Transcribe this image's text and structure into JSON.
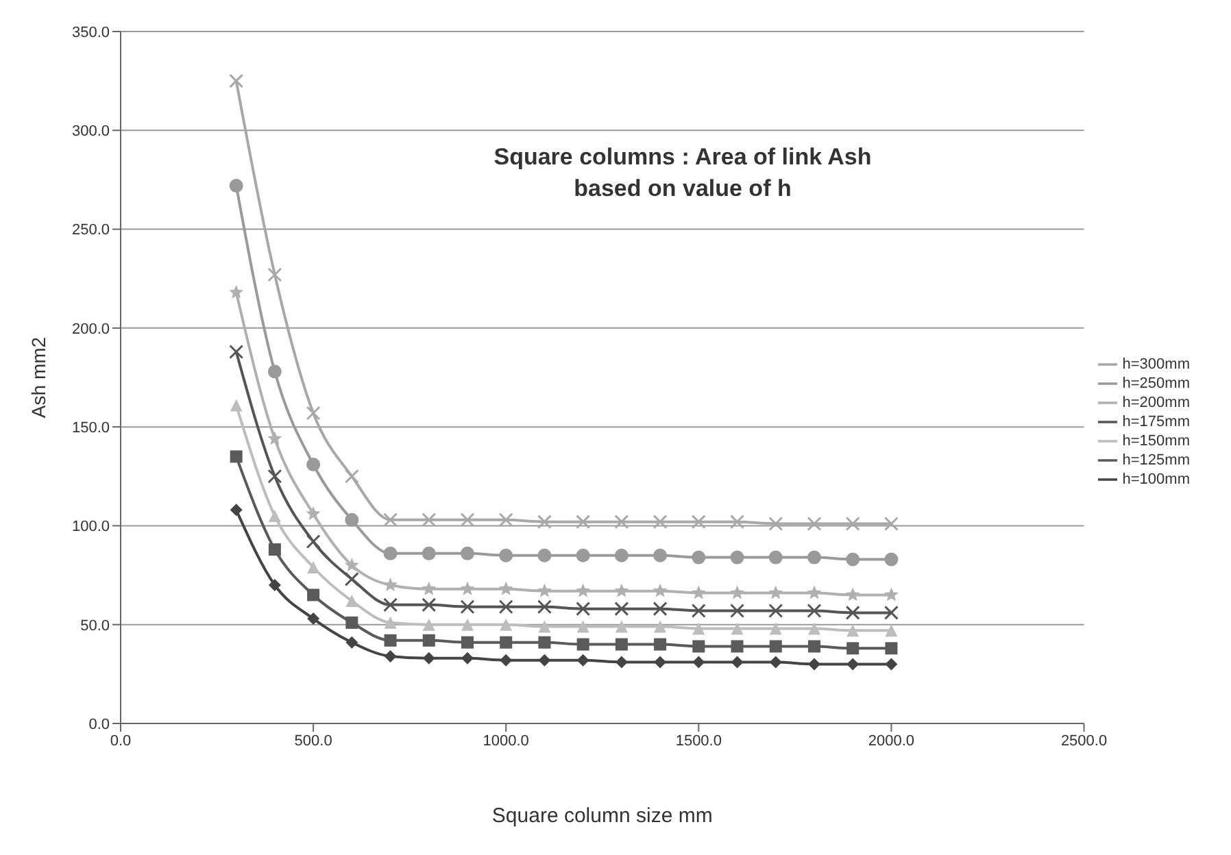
{
  "chart_data": {
    "type": "line",
    "title": "Square columns : Area of link Ash\nbased on value of h",
    "xlabel": "Square column size mm",
    "ylabel": "Ash mm2",
    "x": [
      300,
      400,
      500,
      600,
      700,
      800,
      900,
      1000,
      1100,
      1200,
      1300,
      1400,
      1500,
      1600,
      1700,
      1800,
      1900,
      2000
    ],
    "series": [
      {
        "name": "h=300mm",
        "color": "#a8a8a8",
        "marker": "cross",
        "values": [
          325,
          227,
          157,
          125,
          103,
          103,
          103,
          103,
          102,
          102,
          102,
          102,
          102,
          102,
          101,
          101,
          101,
          101
        ]
      },
      {
        "name": "h=250mm",
        "color": "#9a9a9a",
        "marker": "circle",
        "values": [
          272,
          178,
          131,
          103,
          86,
          86,
          86,
          85,
          85,
          85,
          85,
          85,
          84,
          84,
          84,
          84,
          83,
          83
        ]
      },
      {
        "name": "h=200mm",
        "color": "#b0b0b0",
        "marker": "star",
        "values": [
          218,
          144,
          106,
          80,
          70,
          68,
          68,
          68,
          67,
          67,
          67,
          67,
          66,
          66,
          66,
          66,
          65,
          65
        ]
      },
      {
        "name": "h=175mm",
        "color": "#555555",
        "marker": "cross",
        "values": [
          188,
          125,
          92,
          73,
          60,
          60,
          59,
          59,
          59,
          58,
          58,
          58,
          57,
          57,
          57,
          57,
          56,
          56
        ]
      },
      {
        "name": "h=150mm",
        "color": "#bdbdbd",
        "marker": "triangle",
        "values": [
          161,
          105,
          79,
          62,
          51,
          50,
          50,
          50,
          49,
          49,
          49,
          49,
          48,
          48,
          48,
          48,
          47,
          47
        ]
      },
      {
        "name": "h=125mm",
        "color": "#5a5a5a",
        "marker": "square",
        "values": [
          135,
          88,
          65,
          51,
          42,
          42,
          41,
          41,
          41,
          40,
          40,
          40,
          39,
          39,
          39,
          39,
          38,
          38
        ]
      },
      {
        "name": "h=100mm",
        "color": "#444444",
        "marker": "diamond",
        "values": [
          108,
          70,
          53,
          41,
          34,
          33,
          33,
          32,
          32,
          32,
          31,
          31,
          31,
          31,
          31,
          30,
          30,
          30
        ]
      }
    ],
    "xlim": [
      0,
      2500
    ],
    "xticks": [
      {
        "value": 0,
        "label": "0.0"
      },
      {
        "value": 500,
        "label": "500.0"
      },
      {
        "value": 1000,
        "label": "1000.0"
      },
      {
        "value": 1500,
        "label": "1500.0"
      },
      {
        "value": 2000,
        "label": "2000.0"
      },
      {
        "value": 2500,
        "label": "2500.0"
      }
    ],
    "ylim": [
      0,
      350
    ],
    "yticks": [
      {
        "value": 0,
        "label": "0.0"
      },
      {
        "value": 50,
        "label": "50.0"
      },
      {
        "value": 100,
        "label": "100.0"
      },
      {
        "value": 150,
        "label": "150.0"
      },
      {
        "value": 200,
        "label": "200.0"
      },
      {
        "value": 250,
        "label": "250.0"
      },
      {
        "value": 300,
        "label": "300.0"
      },
      {
        "value": 350,
        "label": "350.0"
      }
    ],
    "grid": "y",
    "legend": "right",
    "line_style": "solid"
  }
}
